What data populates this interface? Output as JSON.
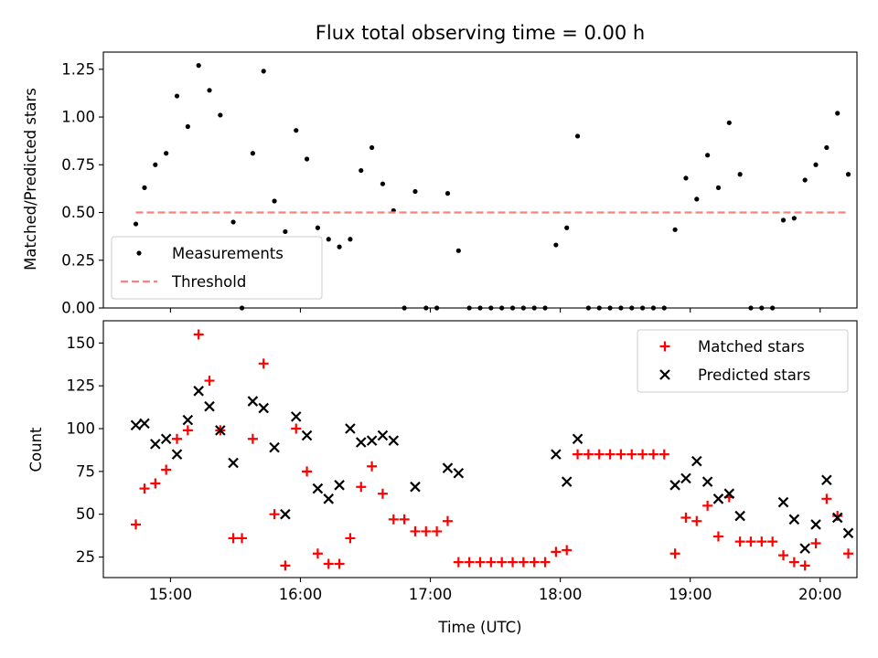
{
  "figure": {
    "title": "Flux total observing time = 0.00 h",
    "xlabel": "Time (UTC)"
  },
  "chart_data": [
    {
      "type": "scatter",
      "ylabel": "Matched/Predicted stars",
      "ylim": [
        0,
        1.34
      ],
      "yticks": [
        "0.00",
        "0.25",
        "0.50",
        "0.75",
        "1.00",
        "1.25"
      ],
      "xticks": [
        "15:00",
        "16:00",
        "17:00",
        "18:00",
        "19:00",
        "20:00"
      ],
      "xlim": [
        "14:29",
        "20:17"
      ],
      "legend": {
        "placement": "lower-left",
        "entries": [
          "Measurements",
          "Threshold"
        ]
      },
      "series": [
        {
          "name": "Measurements",
          "color": "#000000",
          "marker": "dot",
          "points": [
            [
              "14:44",
              0.44
            ],
            [
              "14:48",
              0.63
            ],
            [
              "14:53",
              0.75
            ],
            [
              "14:58",
              0.81
            ],
            [
              "15:03",
              1.11
            ],
            [
              "15:08",
              0.95
            ],
            [
              "15:13",
              1.27
            ],
            [
              "15:18",
              1.14
            ],
            [
              "15:23",
              1.01
            ],
            [
              "15:29",
              0.45
            ],
            [
              "15:33",
              0.0
            ],
            [
              "15:38",
              0.81
            ],
            [
              "15:43",
              1.24
            ],
            [
              "15:48",
              0.56
            ],
            [
              "15:53",
              0.4
            ],
            [
              "15:58",
              0.93
            ],
            [
              "16:03",
              0.78
            ],
            [
              "16:08",
              0.42
            ],
            [
              "16:13",
              0.36
            ],
            [
              "16:18",
              0.32
            ],
            [
              "16:23",
              0.36
            ],
            [
              "16:28",
              0.72
            ],
            [
              "16:33",
              0.84
            ],
            [
              "16:38",
              0.65
            ],
            [
              "16:43",
              0.51
            ],
            [
              "16:48",
              0.0
            ],
            [
              "16:53",
              0.61
            ],
            [
              "16:58",
              0.0
            ],
            [
              "17:03",
              0.0
            ],
            [
              "17:08",
              0.6
            ],
            [
              "17:13",
              0.3
            ],
            [
              "17:18",
              0.0
            ],
            [
              "17:23",
              0.0
            ],
            [
              "17:28",
              0.0
            ],
            [
              "17:33",
              0.0
            ],
            [
              "17:38",
              0.0
            ],
            [
              "17:43",
              0.0
            ],
            [
              "17:48",
              0.0
            ],
            [
              "17:53",
              0.0
            ],
            [
              "17:58",
              0.33
            ],
            [
              "18:03",
              0.42
            ],
            [
              "18:08",
              0.9
            ],
            [
              "18:13",
              0.0
            ],
            [
              "18:18",
              0.0
            ],
            [
              "18:23",
              0.0
            ],
            [
              "18:28",
              0.0
            ],
            [
              "18:33",
              0.0
            ],
            [
              "18:38",
              0.0
            ],
            [
              "18:43",
              0.0
            ],
            [
              "18:48",
              0.0
            ],
            [
              "18:53",
              0.41
            ],
            [
              "18:58",
              0.68
            ],
            [
              "19:03",
              0.57
            ],
            [
              "19:08",
              0.8
            ],
            [
              "19:13",
              0.63
            ],
            [
              "19:18",
              0.97
            ],
            [
              "19:23",
              0.7
            ],
            [
              "19:28",
              0.0
            ],
            [
              "19:33",
              0.0
            ],
            [
              "19:38",
              0.0
            ],
            [
              "19:43",
              0.46
            ],
            [
              "19:48",
              0.47
            ],
            [
              "19:53",
              0.67
            ],
            [
              "19:58",
              0.75
            ],
            [
              "20:03",
              0.84
            ],
            [
              "20:08",
              1.02
            ],
            [
              "20:13",
              0.7
            ]
          ]
        },
        {
          "name": "Threshold",
          "color": "#ff7f7f",
          "style": "dashed",
          "points": [
            [
              "14:44",
              0.5
            ],
            [
              "20:13",
              0.5
            ]
          ]
        }
      ]
    },
    {
      "type": "scatter",
      "ylabel": "Count",
      "ylim": [
        13,
        163
      ],
      "yticks": [
        "25",
        "50",
        "75",
        "100",
        "125",
        "150"
      ],
      "xticks": [
        "15:00",
        "16:00",
        "17:00",
        "18:00",
        "19:00",
        "20:00"
      ],
      "xlim": [
        "14:29",
        "20:17"
      ],
      "legend": {
        "placement": "upper-right",
        "entries": [
          "Matched stars",
          "Predicted stars"
        ]
      },
      "series": [
        {
          "name": "Matched stars",
          "color": "#ff0000",
          "marker": "plus",
          "points": [
            [
              "14:44",
              44
            ],
            [
              "14:48",
              65
            ],
            [
              "14:53",
              68
            ],
            [
              "14:58",
              76
            ],
            [
              "15:03",
              94
            ],
            [
              "15:08",
              99
            ],
            [
              "15:13",
              155
            ],
            [
              "15:18",
              128
            ],
            [
              "15:23",
              99
            ],
            [
              "15:29",
              36
            ],
            [
              "15:33",
              36
            ],
            [
              "15:38",
              94
            ],
            [
              "15:43",
              138
            ],
            [
              "15:48",
              50
            ],
            [
              "15:53",
              20
            ],
            [
              "15:58",
              100
            ],
            [
              "16:03",
              75
            ],
            [
              "16:08",
              27
            ],
            [
              "16:13",
              21
            ],
            [
              "16:18",
              21
            ],
            [
              "16:23",
              36
            ],
            [
              "16:28",
              66
            ],
            [
              "16:33",
              78
            ],
            [
              "16:38",
              62
            ],
            [
              "16:43",
              47
            ],
            [
              "16:48",
              47
            ],
            [
              "16:53",
              40
            ],
            [
              "16:58",
              40
            ],
            [
              "17:03",
              40
            ],
            [
              "17:08",
              46
            ],
            [
              "17:13",
              22
            ],
            [
              "17:18",
              22
            ],
            [
              "17:23",
              22
            ],
            [
              "17:28",
              22
            ],
            [
              "17:33",
              22
            ],
            [
              "17:38",
              22
            ],
            [
              "17:43",
              22
            ],
            [
              "17:48",
              22
            ],
            [
              "17:53",
              22
            ],
            [
              "17:58",
              28
            ],
            [
              "18:03",
              29
            ],
            [
              "18:08",
              85
            ],
            [
              "18:13",
              85
            ],
            [
              "18:18",
              85
            ],
            [
              "18:23",
              85
            ],
            [
              "18:28",
              85
            ],
            [
              "18:33",
              85
            ],
            [
              "18:38",
              85
            ],
            [
              "18:43",
              85
            ],
            [
              "18:48",
              85
            ],
            [
              "18:53",
              27
            ],
            [
              "18:58",
              48
            ],
            [
              "19:03",
              46
            ],
            [
              "19:08",
              55
            ],
            [
              "19:13",
              37
            ],
            [
              "19:18",
              60
            ],
            [
              "19:23",
              34
            ],
            [
              "19:28",
              34
            ],
            [
              "19:33",
              34
            ],
            [
              "19:38",
              34
            ],
            [
              "19:43",
              26
            ],
            [
              "19:48",
              22
            ],
            [
              "19:53",
              20
            ],
            [
              "19:58",
              33
            ],
            [
              "20:03",
              59
            ],
            [
              "20:08",
              49
            ],
            [
              "20:13",
              27
            ]
          ]
        },
        {
          "name": "Predicted stars",
          "color": "#000000",
          "marker": "x",
          "points": [
            [
              "14:44",
              102
            ],
            [
              "14:48",
              103
            ],
            [
              "14:53",
              91
            ],
            [
              "14:58",
              94
            ],
            [
              "15:03",
              85
            ],
            [
              "15:08",
              105
            ],
            [
              "15:13",
              122
            ],
            [
              "15:18",
              113
            ],
            [
              "15:23",
              99
            ],
            [
              "15:29",
              80
            ],
            [
              "15:38",
              116
            ],
            [
              "15:43",
              112
            ],
            [
              "15:48",
              89
            ],
            [
              "15:53",
              50
            ],
            [
              "15:58",
              107
            ],
            [
              "16:03",
              96
            ],
            [
              "16:08",
              65
            ],
            [
              "16:13",
              59
            ],
            [
              "16:18",
              67
            ],
            [
              "16:23",
              100
            ],
            [
              "16:28",
              92
            ],
            [
              "16:33",
              93
            ],
            [
              "16:38",
              96
            ],
            [
              "16:43",
              93
            ],
            [
              "16:53",
              66
            ],
            [
              "17:08",
              77
            ],
            [
              "17:13",
              74
            ],
            [
              "17:58",
              85
            ],
            [
              "18:03",
              69
            ],
            [
              "18:08",
              94
            ],
            [
              "18:53",
              67
            ],
            [
              "18:58",
              71
            ],
            [
              "19:03",
              81
            ],
            [
              "19:08",
              69
            ],
            [
              "19:13",
              59
            ],
            [
              "19:18",
              62
            ],
            [
              "19:23",
              49
            ],
            [
              "19:43",
              57
            ],
            [
              "19:48",
              47
            ],
            [
              "19:53",
              30
            ],
            [
              "19:58",
              44
            ],
            [
              "20:03",
              70
            ],
            [
              "20:08",
              48
            ],
            [
              "20:13",
              39
            ]
          ]
        }
      ]
    }
  ]
}
